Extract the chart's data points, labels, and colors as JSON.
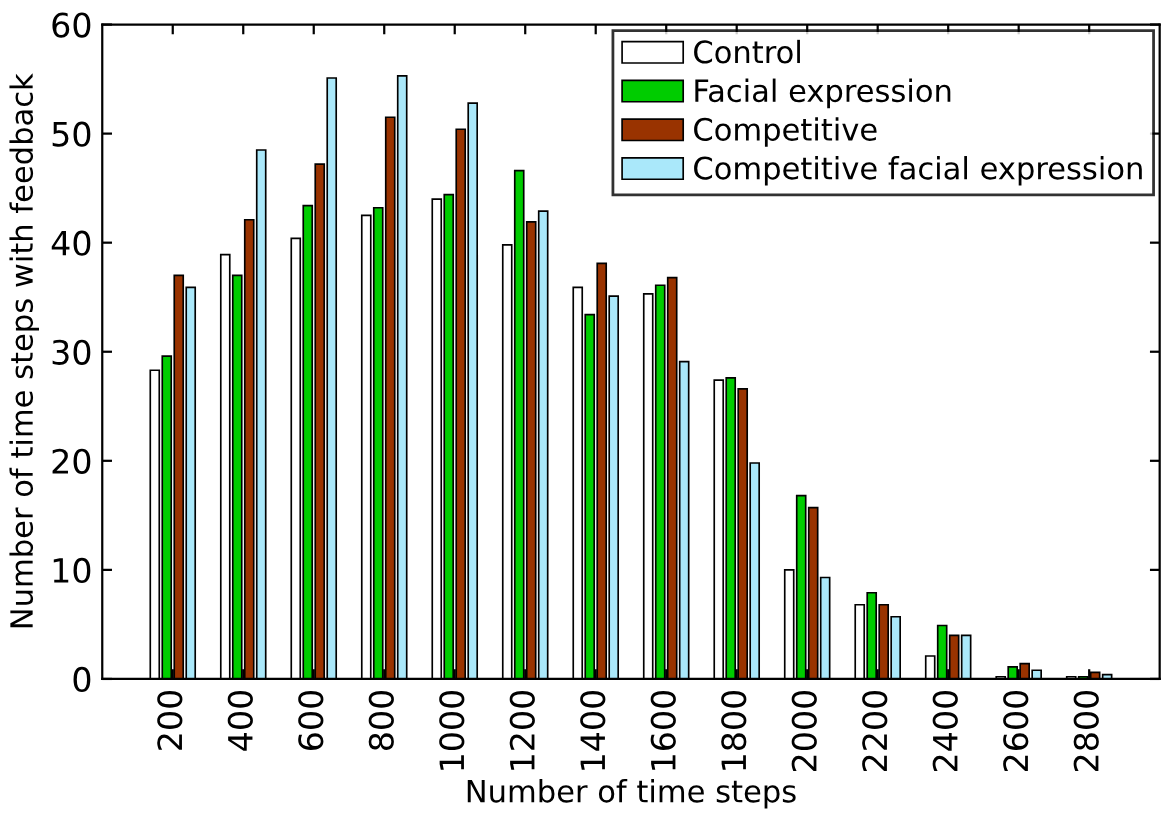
{
  "chart_data": {
    "type": "bar",
    "xlabel": "Number of time steps",
    "ylabel": "Number of time steps with feedback",
    "categories": [
      "200",
      "400",
      "600",
      "800",
      "1000",
      "1200",
      "1400",
      "1600",
      "1800",
      "2000",
      "2200",
      "2400",
      "2600",
      "2800"
    ],
    "series": [
      {
        "name": "Control",
        "color": "#ffffff",
        "values": [
          28.3,
          38.9,
          40.4,
          42.5,
          44.0,
          39.8,
          35.9,
          35.3,
          27.4,
          10.0,
          6.8,
          2.1,
          0.2,
          0.2
        ]
      },
      {
        "name": "Facial expression",
        "color": "#00cc00",
        "values": [
          29.6,
          37.0,
          43.4,
          43.2,
          44.4,
          46.6,
          33.4,
          36.1,
          27.6,
          16.8,
          7.9,
          4.9,
          1.1,
          0.2
        ]
      },
      {
        "name": "Competitive",
        "color": "#993300",
        "values": [
          37.0,
          42.1,
          47.2,
          51.5,
          50.4,
          41.9,
          38.1,
          36.8,
          26.6,
          15.7,
          6.8,
          4.0,
          1.4,
          0.6
        ]
      },
      {
        "name": "Competitive facial expression",
        "color": "#aae8fa",
        "values": [
          35.9,
          48.5,
          55.1,
          55.3,
          52.8,
          42.9,
          35.1,
          29.1,
          19.8,
          9.3,
          5.7,
          4.0,
          0.8,
          0.4
        ]
      }
    ],
    "ylim": [
      0,
      60
    ],
    "yticks": [
      0,
      10,
      20,
      30,
      40,
      50,
      60
    ],
    "grid": false,
    "legend": "top right"
  }
}
